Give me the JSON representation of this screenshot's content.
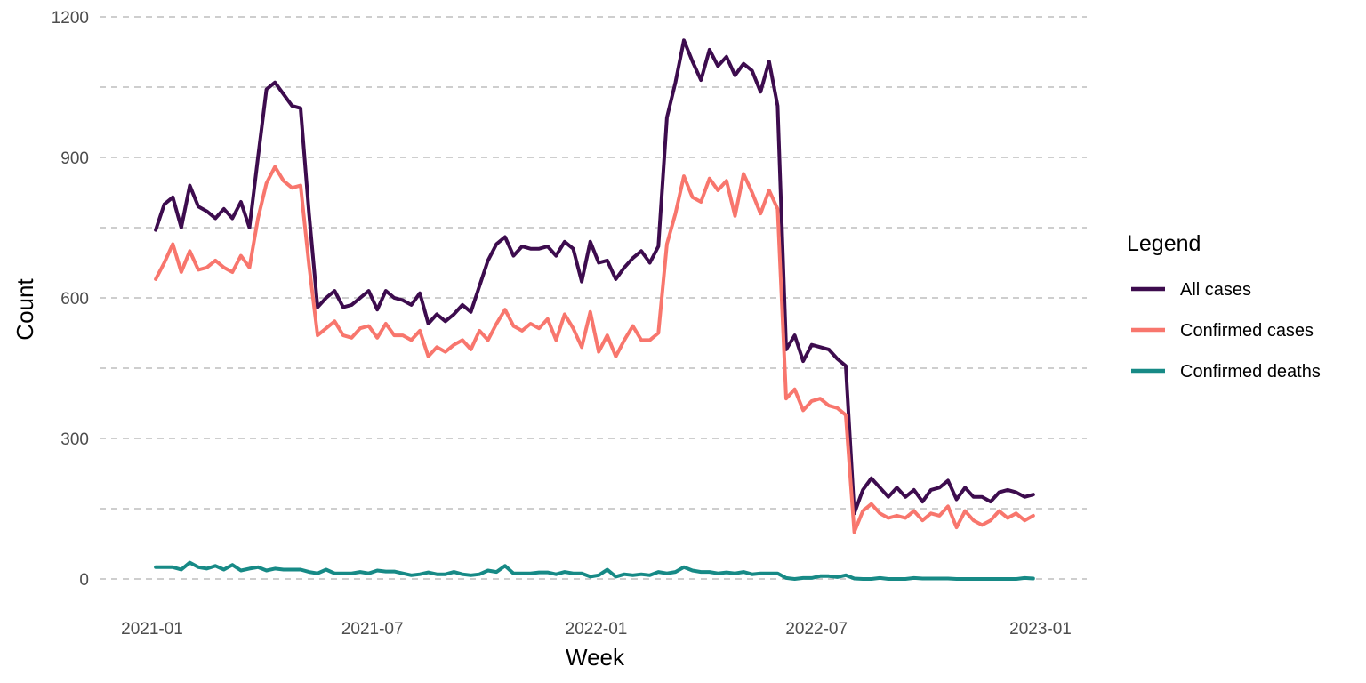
{
  "chart_data": {
    "type": "line",
    "xlabel": "Week",
    "ylabel": "Count",
    "x_ticks": [
      "2021-01",
      "2021-07",
      "2022-01",
      "2022-07",
      "2023-01"
    ],
    "y_ticks": [
      0,
      300,
      600,
      900,
      1200
    ],
    "ylim": [
      -50,
      1200
    ],
    "grid": "horizontal dashed",
    "legend": {
      "title": "Legend",
      "placement": "right",
      "entries": [
        "All cases",
        "Confirmed cases",
        "Confirmed deaths"
      ]
    },
    "x_start": "2021-01-04",
    "x_interval": "weekly",
    "series": [
      {
        "name": "All cases",
        "color": "#3d0c4e",
        "values": [
          745,
          800,
          815,
          750,
          840,
          795,
          785,
          770,
          790,
          770,
          805,
          750,
          900,
          1045,
          1060,
          1035,
          1010,
          1005,
          780,
          580,
          600,
          615,
          580,
          585,
          600,
          615,
          575,
          615,
          600,
          595,
          585,
          610,
          545,
          565,
          550,
          565,
          585,
          570,
          625,
          680,
          715,
          730,
          690,
          710,
          705,
          705,
          710,
          690,
          720,
          705,
          635,
          720,
          675,
          680,
          640,
          665,
          685,
          700,
          675,
          710,
          985,
          1060,
          1150,
          1105,
          1065,
          1130,
          1095,
          1115,
          1075,
          1100,
          1085,
          1040,
          1105,
          1010,
          490,
          520,
          465,
          500,
          495,
          490,
          470,
          455,
          140,
          190,
          215,
          195,
          175,
          195,
          175,
          190,
          165,
          190,
          195,
          210,
          170,
          195,
          175,
          175,
          165,
          185,
          190,
          185,
          175,
          180
        ]
      },
      {
        "name": "Confirmed cases",
        "color": "#f8766d",
        "values": [
          640,
          675,
          715,
          655,
          700,
          660,
          665,
          680,
          665,
          655,
          690,
          665,
          770,
          845,
          880,
          850,
          835,
          840,
          670,
          520,
          535,
          550,
          520,
          515,
          535,
          540,
          515,
          545,
          520,
          520,
          510,
          530,
          475,
          495,
          485,
          500,
          510,
          490,
          530,
          510,
          545,
          575,
          540,
          530,
          545,
          535,
          555,
          510,
          565,
          535,
          495,
          570,
          485,
          520,
          475,
          510,
          540,
          510,
          510,
          525,
          715,
          780,
          860,
          815,
          805,
          855,
          830,
          850,
          775,
          865,
          825,
          780,
          830,
          790,
          385,
          405,
          360,
          380,
          385,
          370,
          365,
          350,
          100,
          145,
          160,
          140,
          130,
          135,
          130,
          145,
          125,
          140,
          135,
          155,
          110,
          145,
          125,
          115,
          125,
          145,
          130,
          140,
          125,
          135
        ]
      },
      {
        "name": "Confirmed deaths",
        "color": "#178a86",
        "values": [
          25,
          25,
          25,
          20,
          35,
          25,
          22,
          28,
          20,
          30,
          18,
          22,
          25,
          18,
          22,
          20,
          20,
          20,
          15,
          12,
          20,
          12,
          12,
          12,
          15,
          12,
          18,
          16,
          16,
          12,
          8,
          10,
          14,
          10,
          10,
          15,
          10,
          8,
          10,
          18,
          15,
          28,
          12,
          12,
          12,
          14,
          14,
          10,
          15,
          12,
          12,
          5,
          8,
          20,
          5,
          10,
          8,
          10,
          8,
          15,
          12,
          15,
          25,
          18,
          15,
          15,
          12,
          14,
          12,
          15,
          10,
          12,
          12,
          12,
          2,
          0,
          2,
          2,
          6,
          6,
          4,
          8,
          1,
          0,
          0,
          2,
          0,
          0,
          0,
          2,
          1,
          1,
          1,
          1,
          0,
          0,
          0,
          0,
          0,
          0,
          0,
          0,
          2,
          1
        ]
      }
    ]
  }
}
